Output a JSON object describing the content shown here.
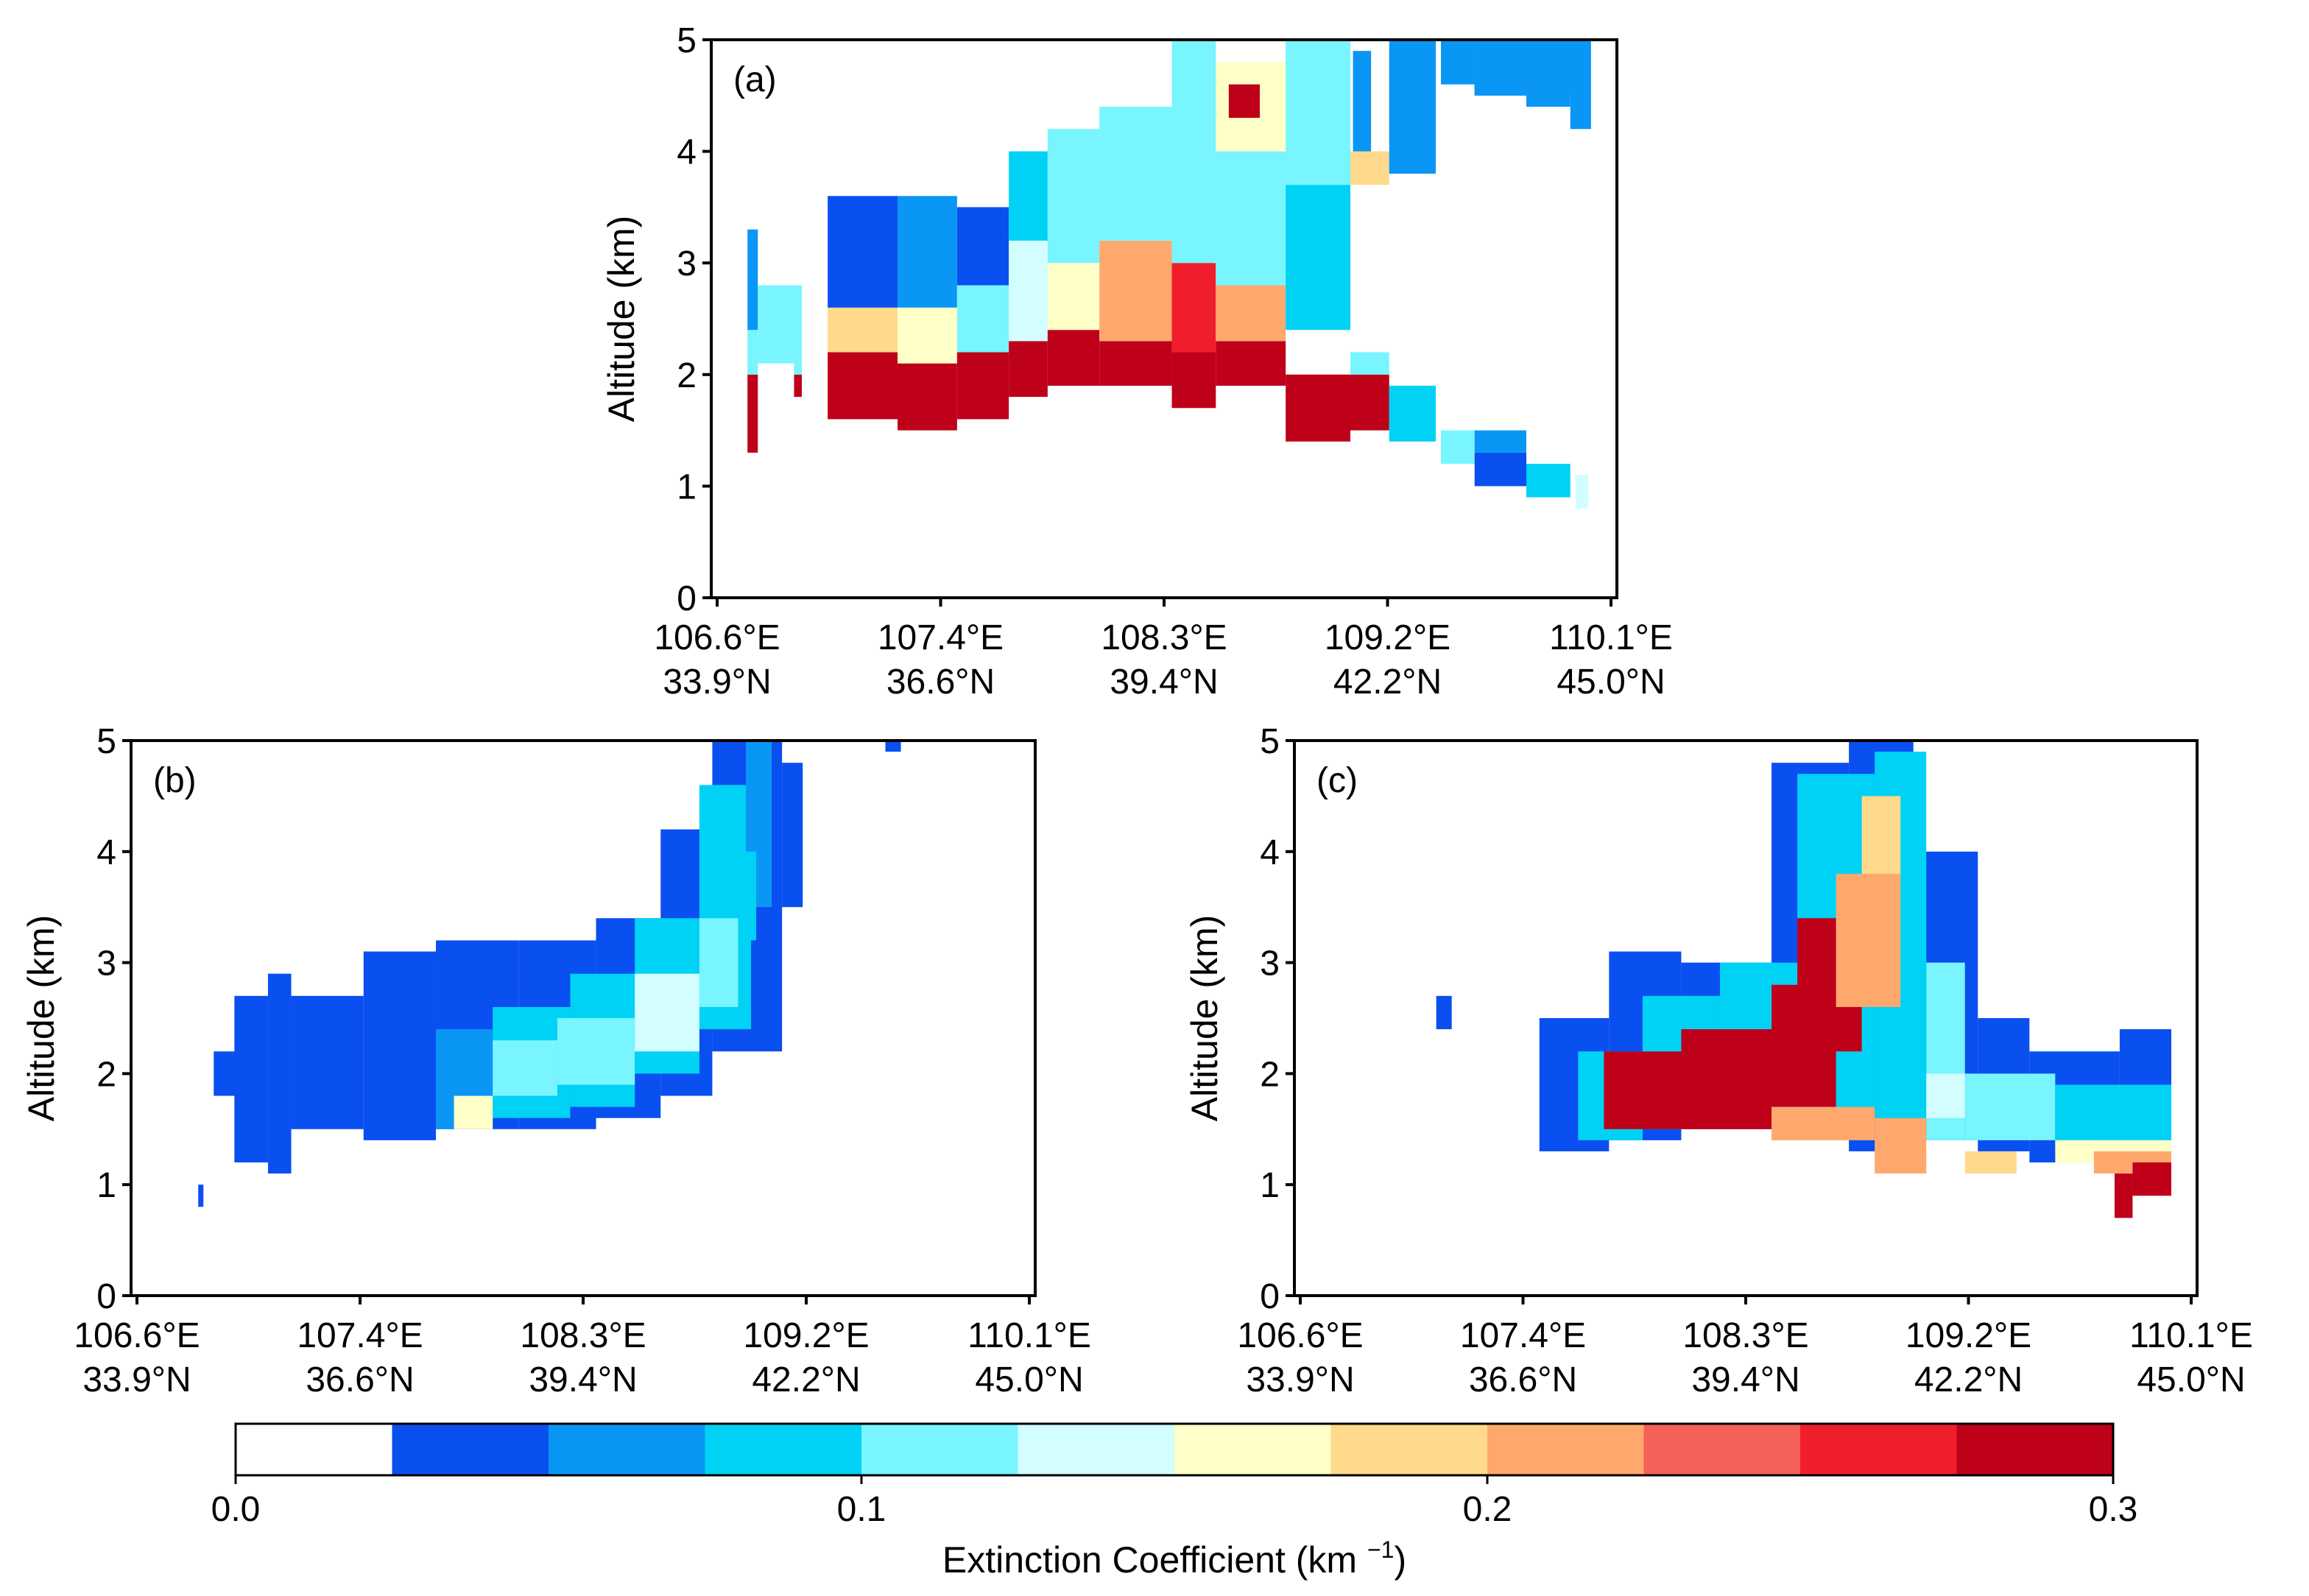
{
  "chart_data": [
    {
      "panel": "(a)",
      "type": "heatmap",
      "ylabel": "Altitude (km)",
      "ylim": [
        0,
        5
      ],
      "yticks": [
        "0",
        "1",
        "2",
        "3",
        "4",
        "5"
      ],
      "xlim": [
        106.6,
        110.1
      ],
      "xticks": [
        {
          "lon": "106.6°E",
          "lat": "33.9°N"
        },
        {
          "lon": "107.4°E",
          "lat": "36.6°N"
        },
        {
          "lon": "108.3°E",
          "lat": "39.4°N"
        },
        {
          "lon": "109.2°E",
          "lat": "42.2°N"
        },
        {
          "lon": "110.1°E",
          "lat": "45.0°N"
        }
      ],
      "cells": [
        [
          106.74,
          106.78,
          1.3,
          2.0,
          0.3
        ],
        [
          106.74,
          106.78,
          2.0,
          2.4,
          0.1
        ],
        [
          106.74,
          106.78,
          2.4,
          3.3,
          0.06
        ],
        [
          106.78,
          106.92,
          2.1,
          2.8,
          0.12
        ],
        [
          106.92,
          106.95,
          1.8,
          2.0,
          0.3
        ],
        [
          106.92,
          106.95,
          2.0,
          2.8,
          0.1
        ],
        [
          107.05,
          107.32,
          1.6,
          2.2,
          0.3
        ],
        [
          107.05,
          107.32,
          2.2,
          2.6,
          0.18
        ],
        [
          107.05,
          107.32,
          2.6,
          3.6,
          0.04
        ],
        [
          107.32,
          107.55,
          1.5,
          2.1,
          0.3
        ],
        [
          107.32,
          107.55,
          2.1,
          2.6,
          0.15
        ],
        [
          107.32,
          107.55,
          2.6,
          3.6,
          0.05
        ],
        [
          107.55,
          107.75,
          1.6,
          2.2,
          0.3
        ],
        [
          107.55,
          107.75,
          2.2,
          2.8,
          0.12
        ],
        [
          107.55,
          107.75,
          2.8,
          3.5,
          0.04
        ],
        [
          107.75,
          107.9,
          1.8,
          2.3,
          0.3
        ],
        [
          107.75,
          107.9,
          2.3,
          3.2,
          0.14
        ],
        [
          107.75,
          107.9,
          3.2,
          4.0,
          0.08
        ],
        [
          107.9,
          108.1,
          1.9,
          2.4,
          0.3
        ],
        [
          107.9,
          108.1,
          2.4,
          3.0,
          0.16
        ],
        [
          107.9,
          108.1,
          3.0,
          4.2,
          0.1
        ],
        [
          108.1,
          108.38,
          1.9,
          2.3,
          0.3
        ],
        [
          108.1,
          108.38,
          2.3,
          3.2,
          0.22
        ],
        [
          108.1,
          108.38,
          3.2,
          4.4,
          0.1
        ],
        [
          108.38,
          108.55,
          1.7,
          2.2,
          0.3
        ],
        [
          108.38,
          108.55,
          2.2,
          3.0,
          0.27
        ],
        [
          108.38,
          108.55,
          3.0,
          5.0,
          0.12
        ],
        [
          108.55,
          108.82,
          1.9,
          2.3,
          0.3
        ],
        [
          108.55,
          108.82,
          2.3,
          2.8,
          0.2
        ],
        [
          108.55,
          108.82,
          2.8,
          4.0,
          0.12
        ],
        [
          108.55,
          108.82,
          4.0,
          4.8,
          0.16
        ],
        [
          108.6,
          108.72,
          4.3,
          4.6,
          0.3
        ],
        [
          108.82,
          109.07,
          1.4,
          2.0,
          0.3
        ],
        [
          108.82,
          109.07,
          2.4,
          3.7,
          0.08
        ],
        [
          108.82,
          109.07,
          3.7,
          5.0,
          0.1
        ],
        [
          109.07,
          109.22,
          1.5,
          2.0,
          0.3
        ],
        [
          109.07,
          109.22,
          2.0,
          2.2,
          0.1
        ],
        [
          109.07,
          109.22,
          3.7,
          4.0,
          0.18
        ],
        [
          109.08,
          109.15,
          4.0,
          4.9,
          0.06
        ],
        [
          109.22,
          109.4,
          1.4,
          1.9,
          0.08
        ],
        [
          109.22,
          109.4,
          3.8,
          5.0,
          0.06
        ],
        [
          109.42,
          109.55,
          1.2,
          1.5,
          0.1
        ],
        [
          109.42,
          109.55,
          4.6,
          5.0,
          0.05
        ],
        [
          109.55,
          109.75,
          1.0,
          1.3,
          0.04
        ],
        [
          109.55,
          109.75,
          1.3,
          1.5,
          0.06
        ],
        [
          109.55,
          109.75,
          4.5,
          5.0,
          0.06
        ],
        [
          109.75,
          109.92,
          0.9,
          1.2,
          0.08
        ],
        [
          109.75,
          109.92,
          4.4,
          4.9,
          0.07
        ],
        [
          109.94,
          109.99,
          0.8,
          1.1,
          0.14
        ],
        [
          109.92,
          110.0,
          4.2,
          5.0,
          0.06
        ],
        [
          109.55,
          109.95,
          4.5,
          5.0,
          0.07
        ]
      ]
    },
    {
      "panel": "(b)",
      "type": "heatmap",
      "ylabel": "Altitude (km)",
      "ylim": [
        0,
        5
      ],
      "yticks": [
        "0",
        "1",
        "2",
        "3",
        "4",
        "5"
      ],
      "xlim": [
        106.6,
        110.1
      ],
      "xticks": [
        {
          "lon": "106.6°E",
          "lat": "33.9°N"
        },
        {
          "lon": "107.4°E",
          "lat": "36.6°N"
        },
        {
          "lon": "108.3°E",
          "lat": "39.4°N"
        },
        {
          "lon": "109.2°E",
          "lat": "42.2°N"
        },
        {
          "lon": "110.1°E",
          "lat": "45.0°N"
        }
      ],
      "cells": [
        [
          106.92,
          107.08,
          1.8,
          2.2,
          0.04
        ],
        [
          107.0,
          107.13,
          1.2,
          2.7,
          0.04
        ],
        [
          107.13,
          107.22,
          1.1,
          2.9,
          0.04
        ],
        [
          107.22,
          107.5,
          1.5,
          2.7,
          0.04
        ],
        [
          107.5,
          107.78,
          1.4,
          3.1,
          0.04
        ],
        [
          107.78,
          108.1,
          1.5,
          3.2,
          0.04
        ],
        [
          108.1,
          108.4,
          1.5,
          3.2,
          0.04
        ],
        [
          108.4,
          108.65,
          1.6,
          3.4,
          0.04
        ],
        [
          108.65,
          108.85,
          1.8,
          4.2,
          0.04
        ],
        [
          108.85,
          109.12,
          2.2,
          5.0,
          0.04
        ],
        [
          109.12,
          109.2,
          3.5,
          4.8,
          0.04
        ],
        [
          107.78,
          108.0,
          1.5,
          2.4,
          0.06
        ],
        [
          108.0,
          108.3,
          1.6,
          2.6,
          0.08
        ],
        [
          108.3,
          108.55,
          1.7,
          2.9,
          0.08
        ],
        [
          108.55,
          108.8,
          2.0,
          3.4,
          0.08
        ],
        [
          108.8,
          109.0,
          2.4,
          4.6,
          0.08
        ],
        [
          108.98,
          109.08,
          3.5,
          5.0,
          0.06
        ],
        [
          107.85,
          108.0,
          1.5,
          1.8,
          0.16
        ],
        [
          108.0,
          108.25,
          1.8,
          2.3,
          0.11
        ],
        [
          108.25,
          108.55,
          1.9,
          2.5,
          0.12
        ],
        [
          108.55,
          108.8,
          2.2,
          2.9,
          0.13
        ],
        [
          108.6,
          108.75,
          2.3,
          2.6,
          0.14
        ],
        [
          108.8,
          108.95,
          2.6,
          3.4,
          0.11
        ],
        [
          108.95,
          109.02,
          3.2,
          4.0,
          0.09
        ],
        [
          106.86,
          106.88,
          0.8,
          1.0,
          0.04
        ],
        [
          109.52,
          109.58,
          4.9,
          5.0,
          0.04
        ]
      ]
    },
    {
      "panel": "(c)",
      "type": "heatmap",
      "ylabel": "Altitude (km)",
      "ylim": [
        0,
        5
      ],
      "yticks": [
        "0",
        "1",
        "2",
        "3",
        "4",
        "5"
      ],
      "xlim": [
        106.6,
        110.1
      ],
      "xticks": [
        {
          "lon": "106.6°E",
          "lat": "33.9°N"
        },
        {
          "lon": "107.4°E",
          "lat": "36.6°N"
        },
        {
          "lon": "108.3°E",
          "lat": "39.4°N"
        },
        {
          "lon": "109.2°E",
          "lat": "42.2°N"
        },
        {
          "lon": "110.1°E",
          "lat": "45.0°N"
        }
      ],
      "cells": [
        [
          107.15,
          107.21,
          2.4,
          2.7,
          0.04
        ],
        [
          107.55,
          107.82,
          1.3,
          2.5,
          0.04
        ],
        [
          107.82,
          108.1,
          1.4,
          3.1,
          0.04
        ],
        [
          108.1,
          108.45,
          1.5,
          3.0,
          0.04
        ],
        [
          108.45,
          108.75,
          1.6,
          4.8,
          0.04
        ],
        [
          108.75,
          109.0,
          1.3,
          5.0,
          0.04
        ],
        [
          109.0,
          109.25,
          1.4,
          4.0,
          0.04
        ],
        [
          109.25,
          109.45,
          1.3,
          2.5,
          0.04
        ],
        [
          109.45,
          109.8,
          1.2,
          2.2,
          0.04
        ],
        [
          109.8,
          110.0,
          1.3,
          2.4,
          0.04
        ],
        [
          107.7,
          107.95,
          1.4,
          2.2,
          0.08
        ],
        [
          107.95,
          108.25,
          1.5,
          2.7,
          0.08
        ],
        [
          108.25,
          108.55,
          1.5,
          3.0,
          0.08
        ],
        [
          108.55,
          108.85,
          1.5,
          4.7,
          0.08
        ],
        [
          108.85,
          109.05,
          1.6,
          4.9,
          0.08
        ],
        [
          109.05,
          109.2,
          1.4,
          3.0,
          0.1
        ],
        [
          109.2,
          109.55,
          1.4,
          2.0,
          0.1
        ],
        [
          109.55,
          110.0,
          1.3,
          1.9,
          0.08
        ],
        [
          107.8,
          108.1,
          1.5,
          2.2,
          0.3
        ],
        [
          108.1,
          108.45,
          1.5,
          2.4,
          0.3
        ],
        [
          108.45,
          108.7,
          1.7,
          2.8,
          0.3
        ],
        [
          108.55,
          108.8,
          2.2,
          3.4,
          0.28
        ],
        [
          108.7,
          108.95,
          2.6,
          3.8,
          0.22
        ],
        [
          108.8,
          108.95,
          3.8,
          4.5,
          0.18
        ],
        [
          108.45,
          108.85,
          1.4,
          1.7,
          0.22
        ],
        [
          108.85,
          109.05,
          1.1,
          1.6,
          0.21
        ],
        [
          109.05,
          109.2,
          1.6,
          2.0,
          0.13
        ],
        [
          109.2,
          109.4,
          1.1,
          1.3,
          0.18
        ],
        [
          109.55,
          110.0,
          1.2,
          1.4,
          0.17
        ],
        [
          109.7,
          110.0,
          1.1,
          1.3,
          0.22
        ],
        [
          109.78,
          109.85,
          0.7,
          1.1,
          0.28
        ],
        [
          109.85,
          110.0,
          0.9,
          1.2,
          0.28
        ]
      ]
    }
  ],
  "colorbar": {
    "label": "Extinction Coefficient (km ",
    "label_sup": "−1",
    "label_end": ")",
    "min": 0.0,
    "max": 0.3,
    "ticks": [
      {
        "value": 0.0,
        "label": "0.0"
      },
      {
        "value": 0.1,
        "label": "0.1"
      },
      {
        "value": 0.2,
        "label": "0.2"
      },
      {
        "value": 0.3,
        "label": "0.3"
      }
    ],
    "colors": [
      "#ffffff",
      "#0a4ff0",
      "#0a96f5",
      "#00d2f5",
      "#78f5ff",
      "#d2feff",
      "#ffffc8",
      "#ffd98c",
      "#ffa86e",
      "#f5605a",
      "#f01e2d",
      "#be0019"
    ]
  }
}
